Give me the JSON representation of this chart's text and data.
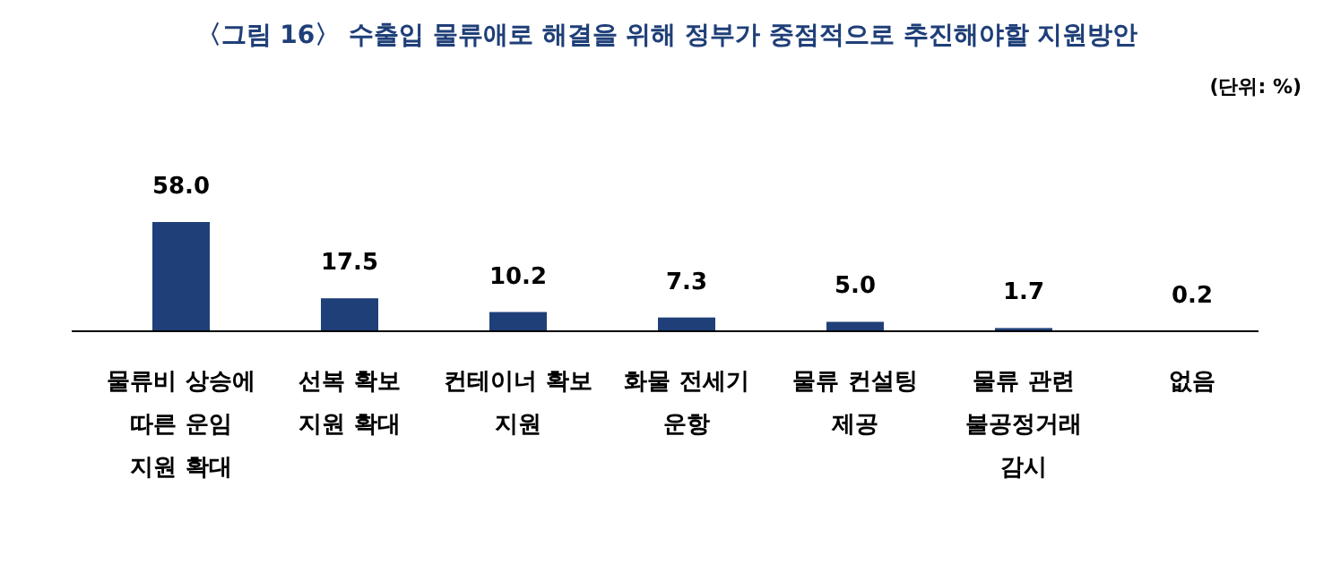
{
  "chart_data": {
    "type": "bar",
    "title": "〈그림 16〉 수출입 물류애로 해결을 위해 정부가 중점적으로 추진해야할 지원방안",
    "annotations": [
      "(단위: %)"
    ],
    "categories": [
      "물류비 상승에 따른 운임 지원 확대",
      "선복 확보 지원 확대",
      "컨테이너 확보 지원",
      "화물 전세기 운항",
      "물류 컨설팅 제공",
      "물류 관련 불공정거래 감시",
      "없음"
    ],
    "values": [
      58.0,
      17.5,
      10.2,
      7.3,
      5.0,
      1.7,
      0.2
    ],
    "value_labels": [
      "58.0",
      "17.5",
      "10.2",
      "7.3",
      "5.0",
      "1.7",
      "0.2"
    ],
    "color": "#1f3f78"
  }
}
